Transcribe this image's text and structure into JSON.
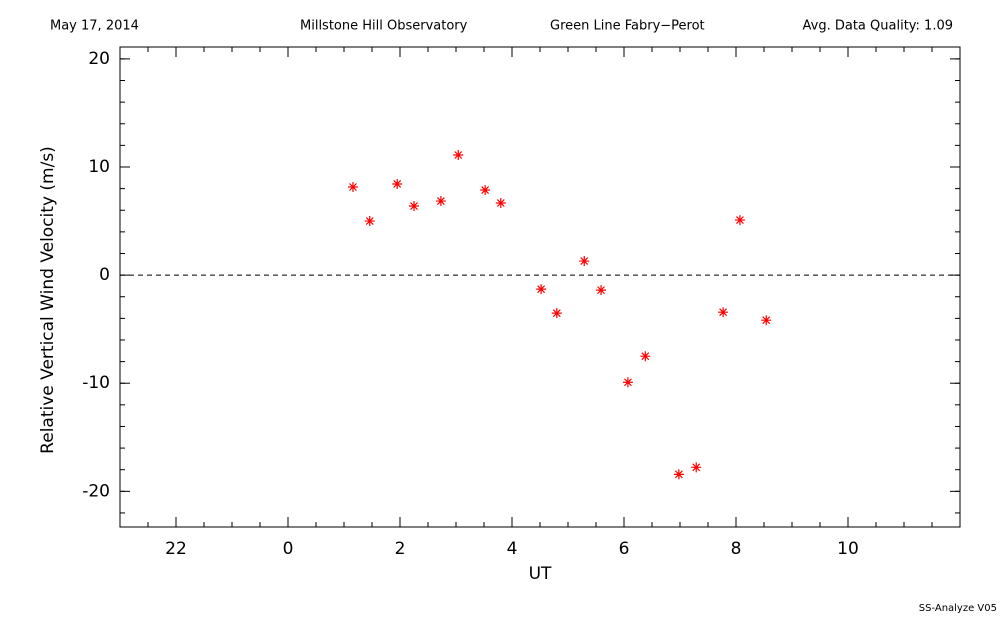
{
  "chart_data": {
    "type": "scatter",
    "header": [
      "May 17, 2014",
      "Millstone Hill Observatory",
      "Green Line Fabry−Perot",
      "Avg. Data Quality: 1.09"
    ],
    "footer": "SS-Analyze V05",
    "x_label": "UT",
    "y_label": "Relative Vertical Wind Velocity (m/s)",
    "series": [
      {
        "color": "#ff0000",
        "x": [
          1.16,
          1.46,
          1.95,
          2.25,
          2.73,
          3.04,
          3.52,
          3.8,
          4.52,
          4.8,
          5.29,
          5.59,
          6.07,
          6.38,
          6.98,
          7.29,
          7.77,
          8.07,
          8.54
        ],
        "values": [
          8.15,
          5.0,
          8.43,
          6.39,
          6.85,
          11.11,
          7.87,
          6.67,
          -1.3,
          -3.52,
          1.3,
          -1.39,
          -9.91,
          -7.5,
          -18.43,
          -17.78,
          -3.43,
          5.09,
          -4.17
        ]
      }
    ],
    "xlim": [
      -3,
      12
    ],
    "xticks": [
      {
        "value": -2,
        "label": "22"
      },
      0,
      2,
      4,
      6,
      8,
      10
    ],
    "ylim": [
      -23.3,
      21.1
    ],
    "yticks": [
      -20,
      -10,
      0,
      10,
      20
    ],
    "zero_line": true
  }
}
